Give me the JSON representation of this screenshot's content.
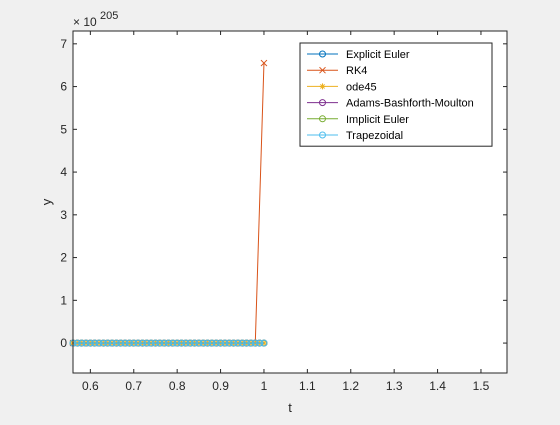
{
  "chart_data": {
    "type": "line",
    "xlabel": "t",
    "ylabel": "y",
    "exponent_base": "× 10",
    "exponent": "205",
    "xlim": [
      0.56,
      1.56
    ],
    "ylim": [
      -0.7,
      7.3
    ],
    "x_ticks": [
      0.6,
      0.7,
      0.8,
      0.9,
      1.0,
      1.1,
      1.2,
      1.3,
      1.4,
      1.5
    ],
    "x_tick_labels": [
      "0.6",
      "0.7",
      "0.8",
      "0.9",
      "1",
      "1.1",
      "1.2",
      "1.3",
      "1.4",
      "1.5"
    ],
    "y_ticks": [
      0,
      1,
      2,
      3,
      4,
      5,
      6,
      7
    ],
    "y_tick_labels": [
      "0",
      "1",
      "2",
      "3",
      "4",
      "5",
      "6",
      "7"
    ],
    "legend_position": "top-right",
    "series": [
      {
        "name": "Explicit Euler",
        "color": "#0072bd",
        "marker": "circle",
        "x_range": [
          0.56,
          1.0
        ],
        "values": 0
      },
      {
        "name": "RK4",
        "color": "#d95319",
        "marker": "x",
        "x_range": [
          0.56,
          1.0
        ],
        "values": 0,
        "final_points": [
          [
            0.98,
            0
          ],
          [
            1.0,
            6.55
          ]
        ]
      },
      {
        "name": "ode45",
        "color": "#edb120",
        "marker": "asterisk",
        "x_range": [
          0.56,
          1.0
        ],
        "values": 0
      },
      {
        "name": "Adams-Bashforth-Moulton",
        "color": "#7e2f8e",
        "marker": "circle",
        "x_range": [
          0.56,
          1.0
        ],
        "values": 0
      },
      {
        "name": "Implicit Euler",
        "color": "#77ac30",
        "marker": "circle",
        "x_range": [
          0.56,
          1.0
        ],
        "values": 0
      },
      {
        "name": "Trapezoidal",
        "color": "#4dbeee",
        "marker": "circle",
        "x_range": [
          0.56,
          1.0
        ],
        "values": 0
      }
    ]
  }
}
